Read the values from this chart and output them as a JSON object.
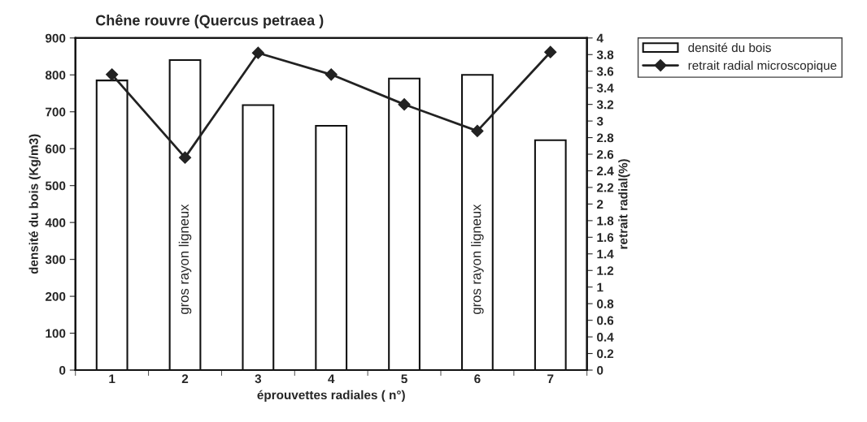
{
  "chart_data": {
    "type": "bar",
    "title": "Chêne rouvre (Quercus petraea )",
    "xlabel": "éprouvettes radiales ( n°)",
    "ylabel": "densité du bois (Kg/m3)",
    "y2label": "retrait radial(%)",
    "categories": [
      "1",
      "2",
      "3",
      "4",
      "5",
      "6",
      "7"
    ],
    "series": [
      {
        "name": "densité du bois",
        "color": "#ffffff",
        "values": [
          785,
          840,
          718,
          662,
          790,
          800,
          623
        ]
      },
      {
        "name": "retrait radial microscopique",
        "type": "line",
        "axis": "y2",
        "color": "#222222",
        "marker": "diamond",
        "values": [
          3.56,
          2.56,
          3.82,
          3.56,
          3.2,
          2.88,
          3.83
        ]
      }
    ],
    "ylim": [
      0,
      900
    ],
    "yticks": [
      0,
      100,
      200,
      300,
      400,
      500,
      600,
      700,
      800,
      900
    ],
    "y2lim": [
      0,
      4
    ],
    "y2ticks": [
      0,
      0.2,
      0.4,
      0.6,
      0.8,
      1,
      1.2,
      1.4,
      1.6,
      1.8,
      2,
      2.2,
      2.4,
      2.6,
      2.8,
      3,
      3.2,
      3.4,
      3.6,
      3.8,
      4
    ],
    "annotations": [
      "gros rayon ligneux",
      "gros rayon ligneux"
    ],
    "grid": false,
    "legend": "top right"
  }
}
